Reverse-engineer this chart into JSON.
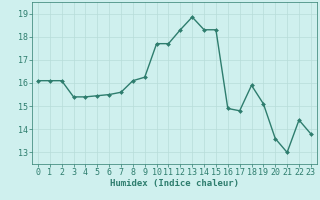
{
  "x": [
    0,
    1,
    2,
    3,
    4,
    5,
    6,
    7,
    8,
    9,
    10,
    11,
    12,
    13,
    14,
    15,
    16,
    17,
    18,
    19,
    20,
    21,
    22,
    23
  ],
  "y": [
    16.1,
    16.1,
    16.1,
    15.4,
    15.4,
    15.45,
    15.5,
    15.6,
    16.1,
    16.25,
    17.7,
    17.7,
    18.3,
    18.85,
    18.3,
    18.3,
    14.9,
    14.8,
    15.9,
    15.1,
    13.6,
    13.0,
    14.4,
    13.8
  ],
  "ylim": [
    12.5,
    19.5
  ],
  "yticks": [
    13,
    14,
    15,
    16,
    17,
    18,
    19
  ],
  "xticks": [
    0,
    1,
    2,
    3,
    4,
    5,
    6,
    7,
    8,
    9,
    10,
    11,
    12,
    13,
    14,
    15,
    16,
    17,
    18,
    19,
    20,
    21,
    22,
    23
  ],
  "xlabel": "Humidex (Indice chaleur)",
  "line_color": "#2e7d6e",
  "marker_color": "#2e7d6e",
  "bg_color": "#cff0ee",
  "grid_color": "#b8ddd9",
  "tick_color": "#2e7d6e",
  "label_color": "#2e7d6e",
  "xlabel_fontsize": 6.5,
  "tick_fontsize": 6,
  "linewidth": 1.0,
  "markersize": 2.0
}
